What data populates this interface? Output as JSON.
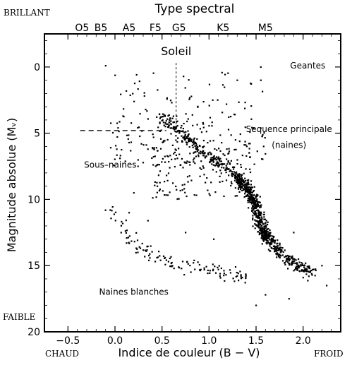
{
  "chart_data": {
    "type": "scatter",
    "title": "Type spectral",
    "xlabel": "Indice de couleur (B − V)",
    "ylabel": "Magnitude absolue (Mᵥ)",
    "xlim": [
      -0.75,
      2.4
    ],
    "ylim": [
      20,
      -2.5
    ],
    "y_inverted": true,
    "grid": false,
    "x_ticks": [
      -0.5,
      0.0,
      0.5,
      1.0,
      1.5,
      2.0
    ],
    "x_tick_labels": [
      "−0.5",
      "0.0",
      "0.5",
      "1.0",
      "1.5",
      "2.0"
    ],
    "y_ticks": [
      0,
      5,
      10,
      15,
      20
    ],
    "y_tick_labels": [
      "0",
      "5",
      "10",
      "15",
      "20"
    ],
    "spectral_types": [
      {
        "label": "O5",
        "x": -0.35
      },
      {
        "label": "B5",
        "x": -0.15
      },
      {
        "label": "A5",
        "x": 0.15
      },
      {
        "label": "F5",
        "x": 0.43
      },
      {
        "label": "G5",
        "x": 0.68
      },
      {
        "label": "K5",
        "x": 1.15
      },
      {
        "label": "M5",
        "x": 1.6
      }
    ],
    "corner_labels": {
      "top_left": "BRILLANT",
      "bottom_left": "FAIBLE",
      "bottom_left_x": "CHAUD",
      "bottom_right_x": "FROID"
    },
    "annotations": [
      {
        "text": "Soleil",
        "x": 0.65,
        "y": -0.9
      },
      {
        "text": "Geantes",
        "x": 2.05,
        "y": 0.1
      },
      {
        "text": "Sequence principale",
        "x": 1.85,
        "y": 4.9
      },
      {
        "text": "(naines)",
        "x": 1.85,
        "y": 6.1
      },
      {
        "text": "Sous–naines",
        "x": -0.05,
        "y": 7.6
      },
      {
        "text": "Naines blanches",
        "x": 0.2,
        "y": 17.2
      }
    ],
    "sun": {
      "x": 0.65,
      "y": 4.8
    },
    "regions": {
      "main_sequence": {
        "points": [
          [
            0.5,
            3.8
          ],
          [
            0.7,
            5.0
          ],
          [
            0.9,
            6.3
          ],
          [
            1.1,
            7.2
          ],
          [
            1.3,
            8.3
          ],
          [
            1.42,
            9.3
          ],
          [
            1.5,
            10.5
          ],
          [
            1.55,
            12.0
          ],
          [
            1.62,
            13.0
          ],
          [
            1.75,
            14.0
          ],
          [
            1.9,
            14.8
          ],
          [
            2.1,
            15.6
          ]
        ],
        "spread": 0.28,
        "count": 720
      },
      "giants_and_bright": {
        "x_range": [
          -0.05,
          1.6
        ],
        "y_range": [
          0.3,
          7.5
        ],
        "count": 200
      },
      "subgiants": {
        "x_range": [
          0.4,
          1.45
        ],
        "y_range": [
          5.5,
          10.0
        ],
        "count": 160
      },
      "white_dwarfs": {
        "points": [
          [
            -0.1,
            10.5
          ],
          [
            0.1,
            12.5
          ],
          [
            0.3,
            13.8
          ],
          [
            0.6,
            14.8
          ],
          [
            0.9,
            15.2
          ],
          [
            1.2,
            15.6
          ],
          [
            1.4,
            16.0
          ]
        ],
        "spread": 0.4,
        "count": 130
      },
      "scattered_outliers": {
        "points": [
          [
            -0.1,
            -0.1
          ],
          [
            0.15,
            11.0
          ],
          [
            0.2,
            9.5
          ],
          [
            0.45,
            9.0
          ],
          [
            0.35,
            11.6
          ],
          [
            1.3,
            1.0
          ],
          [
            1.55,
            1.0
          ],
          [
            1.55,
            0.0
          ],
          [
            1.9,
            12.5
          ],
          [
            2.0,
            15.9
          ],
          [
            2.2,
            15.0
          ],
          [
            2.25,
            16.5
          ],
          [
            1.6,
            17.2
          ],
          [
            1.5,
            18.0
          ],
          [
            0.75,
            12.5
          ],
          [
            1.05,
            13.0
          ],
          [
            1.85,
            17.5
          ]
        ]
      }
    }
  }
}
